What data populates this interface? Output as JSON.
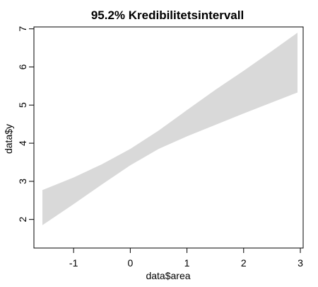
{
  "chart_data": {
    "type": "area",
    "title": "95.2% Kredibilitetsintervall",
    "xlabel": "data$area",
    "ylabel": "data$y",
    "xlim": [
      -1.7,
      3.05
    ],
    "ylim": [
      1.25,
      7.05
    ],
    "xticks": [
      -1,
      0,
      1,
      2,
      3
    ],
    "yticks": [
      2,
      3,
      4,
      5,
      6,
      7
    ],
    "grid": false,
    "band": {
      "x": [
        -1.55,
        -1.0,
        -0.5,
        0.0,
        0.5,
        1.0,
        1.5,
        2.0,
        2.5,
        2.95
      ],
      "lower": [
        1.85,
        2.4,
        2.92,
        3.42,
        3.85,
        4.18,
        4.48,
        4.78,
        5.07,
        5.33
      ],
      "upper": [
        2.77,
        3.1,
        3.45,
        3.85,
        4.33,
        4.87,
        5.4,
        5.9,
        6.42,
        6.9
      ],
      "fill_color": "#d9d9d9"
    }
  }
}
